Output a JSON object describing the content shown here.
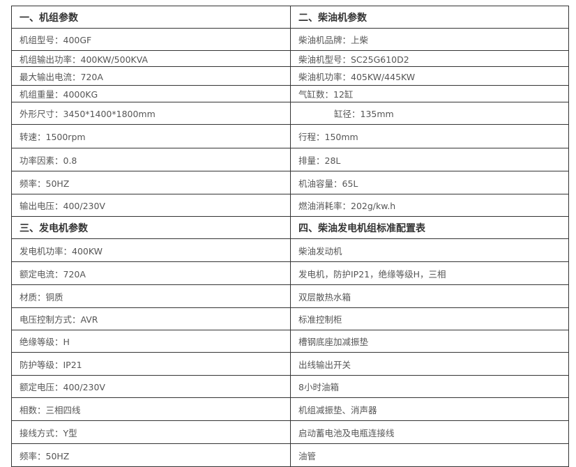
{
  "rows": [
    {
      "left": "一、机组参数",
      "right": "二、柴油机参数",
      "header": true
    },
    {
      "left": "机组型号：400GF",
      "right": "柴油机品牌：上柴"
    },
    {
      "left": "机组输出功率：400KW/500KVA",
      "right": "柴油机型号：SC25G610D2"
    },
    {
      "left": "最大输出电流：720A",
      "right": "柴油机功率：405KW/445KW"
    },
    {
      "left": "机组重量：4000KG",
      "right": "气缸数：12缸"
    },
    {
      "left": "外形尺寸：3450*1400*1800mm",
      "right": "缸径：135mm",
      "right_indent": true
    },
    {
      "left": "转速：1500rpm",
      "right": "行程：150mm"
    },
    {
      "left": "功率因素：0.8",
      "right": "排量：28L"
    },
    {
      "left": "频率：50HZ",
      "right": "机油容量：65L"
    },
    {
      "left": "输出电压：400/230V",
      "right": "燃油消耗率：202g/kw.h"
    },
    {
      "left": "三、发电机参数",
      "right": "四、柴油发电机组标准配置表",
      "header": true
    },
    {
      "left": "发电机功率：400KW",
      "right": "柴油发动机"
    },
    {
      "left": "额定电流：720A",
      "right": "发电机，防护IP21，绝缘等级H，三相"
    },
    {
      "left": "材质：铜质",
      "right": "双层散热水箱"
    },
    {
      "left": "电压控制方式：AVR",
      "right": "标准控制柜"
    },
    {
      "left": "绝缘等级：H",
      "right": "槽钢底座加减振垫"
    },
    {
      "left": "防护等级：IP21",
      "right": "出线输出开关"
    },
    {
      "left": "额定电压：400/230V",
      "right": "8小时油箱"
    },
    {
      "left": "相数：三相四线",
      "right": "机组减振垫、消声器"
    },
    {
      "left": "接线方式：Y型",
      "right": "启动蓄电池及电瓶连接线"
    },
    {
      "left": "频率：50HZ",
      "right": "油管"
    }
  ]
}
